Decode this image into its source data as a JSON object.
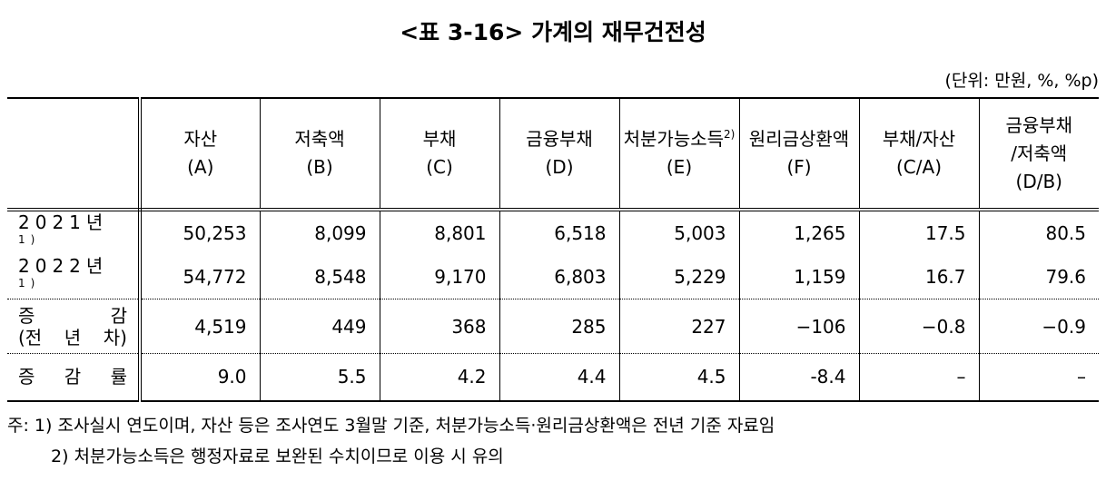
{
  "title": "<표 3-16> 가계의 재무건전성",
  "unit": "(단위: 만원, %, %p)",
  "table": {
    "header": [
      {
        "lines": [
          "자산",
          "(A)"
        ]
      },
      {
        "lines": [
          "저축액",
          "(B)"
        ]
      },
      {
        "lines": [
          "부채",
          "(C)"
        ]
      },
      {
        "lines": [
          "금융부채",
          "(D)"
        ]
      },
      {
        "lines": [
          "처분가능소득",
          "(E)"
        ],
        "sup": "2)"
      },
      {
        "lines": [
          "원리금상환액",
          "(F)"
        ]
      },
      {
        "lines": [
          "부채/자산",
          "(C/A)"
        ]
      },
      {
        "lines": [
          "금융부채",
          "/저축액",
          "(D/B)"
        ]
      }
    ],
    "rows": [
      {
        "label": [
          "2021년"
        ],
        "sup": "1)",
        "cells": [
          "50,253",
          "8,099",
          "8,801",
          "6,518",
          "5,003",
          "1,265",
          "17.5",
          "80.5"
        ]
      },
      {
        "label": [
          "2022년"
        ],
        "sup": "1)",
        "cells": [
          "54,772",
          "8,548",
          "9,170",
          "6,803",
          "5,229",
          "1,159",
          "16.7",
          "79.6"
        ]
      },
      {
        "label": [
          "증 감",
          "(전 년 차)"
        ],
        "cells": [
          "4,519",
          "449",
          "368",
          "285",
          "227",
          "−106",
          "−0.8",
          "−0.9"
        ]
      },
      {
        "label": [
          "증 감 률"
        ],
        "cells": [
          "9.0",
          "5.5",
          "4.2",
          "4.4",
          "4.5",
          "-8.4",
          "–",
          "–"
        ]
      }
    ]
  },
  "notes": [
    "주: 1) 조사실시 연도이며, 자산 등은 조사연도 3월말 기준, 처분가능소득·원리금상환액은 전년 기준 자료임",
    "2) 처분가능소득은 행정자료로 보완된 수치이므로 이용 시 유의"
  ]
}
